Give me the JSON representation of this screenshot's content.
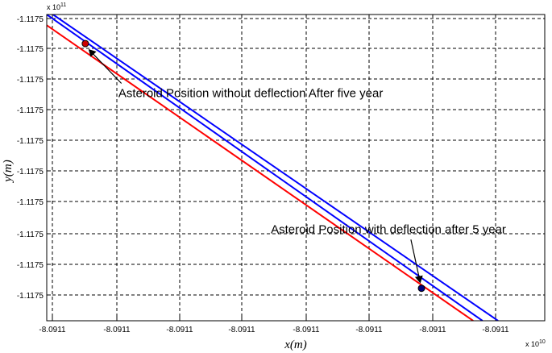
{
  "chart_data": {
    "type": "line",
    "xlabel": "x(m)",
    "ylabel": "y(m)",
    "x_exponent_label": "x 10",
    "x_exponent_power": "10",
    "y_exponent_label": "x 10",
    "y_exponent_power": "11",
    "x_tick_labels": [
      "-8.0911",
      "-8.0911",
      "-8.0911",
      "-8.0911",
      "-8.0911",
      "-8.0911",
      "-8.0911",
      "-8.0911"
    ],
    "y_tick_labels": [
      "-1.1175",
      "-1.1175",
      "-1.1175",
      "-1.1175",
      "-1.1175",
      "-1.1175",
      "-1.1175",
      "-1.1175",
      "-1.1175",
      "-1.1175"
    ],
    "xlim": [
      0,
      8
    ],
    "ylim": [
      0,
      10
    ],
    "grid": true,
    "series": [
      {
        "color": "#0000ff",
        "x": [
          0.0,
          7.0
        ],
        "y": [
          10.0,
          0.0
        ]
      },
      {
        "color": "#0000ff",
        "x": [
          0.1,
          7.25
        ],
        "y": [
          10.0,
          0.0
        ]
      },
      {
        "color": "#ff0000",
        "x": [
          0.0,
          6.85
        ],
        "y": [
          9.65,
          0.0
        ]
      }
    ],
    "points": [
      {
        "label": "without-deflection",
        "x": 0.62,
        "y": 9.05,
        "fill": "#cc0000",
        "stroke": "#000000"
      },
      {
        "label": "with-deflection",
        "x": 6.02,
        "y": 1.06,
        "fill": "#000080",
        "stroke": "#000000"
      }
    ],
    "annotations": [
      {
        "text": "Asteroid Position without deflection After five year",
        "text_x": 1.15,
        "text_y": 7.3,
        "arrow_from": [
          1.2,
          7.75
        ],
        "arrow_to": [
          0.68,
          8.85
        ]
      },
      {
        "text": "Asteroid Position with deflection after 5 year",
        "text_x": 3.6,
        "text_y": 2.85,
        "arrow_from": [
          5.85,
          2.65
        ],
        "arrow_to": [
          6.0,
          1.25
        ]
      }
    ]
  }
}
